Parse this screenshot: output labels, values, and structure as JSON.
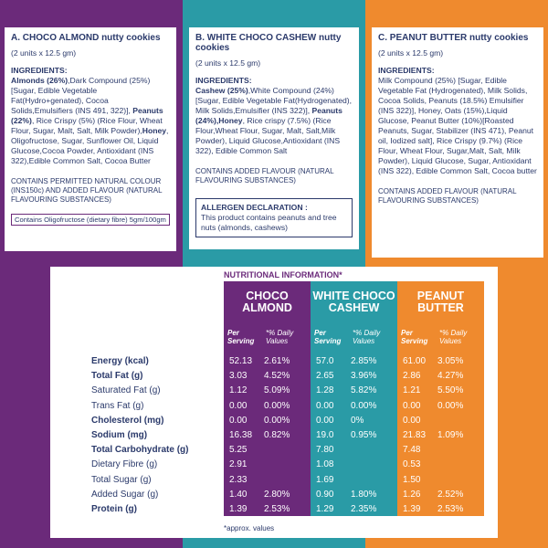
{
  "panels": [
    {
      "title": "A. CHOCO ALMOND nutty cookies",
      "units": "(2 units x 12.5 gm)",
      "ingredients_heading": "INGREDIENTS:",
      "ingredients": [
        {
          "text": "Almonds (26%)",
          "bold": true
        },
        {
          "text": ",Dark Compound (25%)[Sugar, Edible Vegetable Fat(Hydro+genated), Cocoa Solids,Emulsifiers (INS 491, 322)], ",
          "bold": false
        },
        {
          "text": "Peanuts (22%)",
          "bold": true
        },
        {
          "text": ", Rice Crispy (5%) (Rice Flour, Wheat Flour, Sugar, Malt, Salt, Milk Powder),",
          "bold": false
        },
        {
          "text": "Honey",
          "bold": true
        },
        {
          "text": ", Oligofructose, Sugar, Sunflower Oil, Liquid Glucose,Cocoa Powder, Antioxidant (INS 322),Edible Common Salt, Cocoa Butter",
          "bold": false
        }
      ],
      "note": "CONTAINS PERMITTED NATURAL COLOUR (INS150c) AND ADDED FLAVOUR (NATURAL FLAVOURING SUBSTANCES)",
      "box": "Contains Oligofructose (dietary fibre) 5gm/100gm"
    },
    {
      "title": "B. WHITE CHOCO CASHEW nutty cookies",
      "units": "(2 units x 12.5 gm)",
      "ingredients_heading": "INGREDIENTS:",
      "ingredients": [
        {
          "text": "Cashew (25%)",
          "bold": true
        },
        {
          "text": ",White Compound (24%)[Sugar, Edible Vegetable Fat(Hydrogenated), Milk Solids,Emulsifier (INS 322)], ",
          "bold": false
        },
        {
          "text": "Peanuts (24%),Honey",
          "bold": true
        },
        {
          "text": ", Rice crispy (7.5%) (Rice Flour,Wheat Flour, Sugar, Malt, Salt,Milk Powder), Liquid Glucose,Antioxidant (INS 322), Edible Common Salt",
          "bold": false
        }
      ],
      "note": "CONTAINS ADDED FLAVOUR (NATURAL FLAVOURING SUBSTANCES)",
      "allergen": {
        "title": "ALLERGEN DECLARATION :",
        "text": "This product contains peanuts and tree nuts (almonds, cashews)"
      }
    },
    {
      "title": "C. PEANUT BUTTER nutty cookies",
      "units": "(2 units x 12.5 gm)",
      "ingredients_heading": "INGREDIENTS:",
      "ingredients": [
        {
          "text": "Milk Compound (25%) [Sugar, Edible Vegetable Fat (Hydrogenated), Milk Solids, Cocoa Solids, Peanuts (18.5%) Emulsifier (INS 322)], Honey, Oats (15%),Liquid Glucose, Peanut Butter (10%)[Roasted Peanuts, Sugar, Stabilizer (INS 471), Peanut oil, Iodized salt], Rice Crispy (9.7%) (Rice Flour, Wheat Flour, Sugar,Malt, Salt, Milk Powder), Liquid Glucose, Sugar, Antioxidant (INS 322), Edible Common Salt, Cocoa butter",
          "bold": false
        }
      ],
      "note": "CONTAINS ADDED FLAVOUR (NATURAL FLAVOURING SUBSTANCES)"
    }
  ],
  "nutrition": {
    "title": "NUTRITIONAL INFORMATION*",
    "columns": [
      {
        "name": "CHOCO ALMOND",
        "per_serving": "Per Serving",
        "daily_values": "*% Daily Values"
      },
      {
        "name": "WHITE CHOCO CASHEW",
        "per_serving": "Per Serving",
        "daily_values": "*% Daily Values"
      },
      {
        "name": "PEANUT BUTTER",
        "per_serving": "Per Serving",
        "daily_values": "*% Daily Values"
      }
    ],
    "rows": [
      {
        "label": "Energy (kcal)",
        "bold": true,
        "cells": [
          "52.13",
          "2.61%",
          "57.0",
          "2.85%",
          "61.00",
          "3.05%"
        ]
      },
      {
        "label": "Total Fat (g)",
        "bold": true,
        "cells": [
          "3.03",
          "4.52%",
          "2.65",
          "3.96%",
          "2.86",
          "4.27%"
        ]
      },
      {
        "label": "Saturated Fat (g)",
        "bold": false,
        "cells": [
          "1.12",
          "5.09%",
          "1.28",
          "5.82%",
          "1.21",
          "5.50%"
        ]
      },
      {
        "label": "Trans Fat (g)",
        "bold": false,
        "cells": [
          "0.00",
          "0.00%",
          "0.00",
          "0.00%",
          "0.00",
          "0.00%"
        ]
      },
      {
        "label": "Cholesterol (mg)",
        "bold": true,
        "cells": [
          "0.00",
          "0.00%",
          "0.00",
          "0%",
          "0.00",
          null
        ]
      },
      {
        "label": "Sodium (mg)",
        "bold": true,
        "cells": [
          "16.38",
          "0.82%",
          "19.0",
          "0.95%",
          "21.83",
          "1.09%"
        ]
      },
      {
        "label": "Total Carbohydrate (g)",
        "bold": true,
        "cells": [
          "5.25",
          null,
          "7.80",
          null,
          "7.48",
          null
        ]
      },
      {
        "label": "Dietary Fibre (g)",
        "bold": false,
        "cells": [
          "2.91",
          null,
          "1.08",
          null,
          "0.53",
          null
        ]
      },
      {
        "label": "Total Sugar (g)",
        "bold": false,
        "cells": [
          "2.33",
          null,
          "1.69",
          null,
          "1.50",
          null
        ]
      },
      {
        "label": "Added Sugar (g)",
        "bold": false,
        "cells": [
          "1.40",
          "2.80%",
          "0.90",
          "1.80%",
          "1.26",
          "2.52%"
        ]
      },
      {
        "label": "Protein (g)",
        "bold": true,
        "cells": [
          "1.39",
          "2.53%",
          "1.29",
          "2.35%",
          "1.39",
          "2.53%"
        ]
      }
    ],
    "footnote": "*approx. values"
  }
}
